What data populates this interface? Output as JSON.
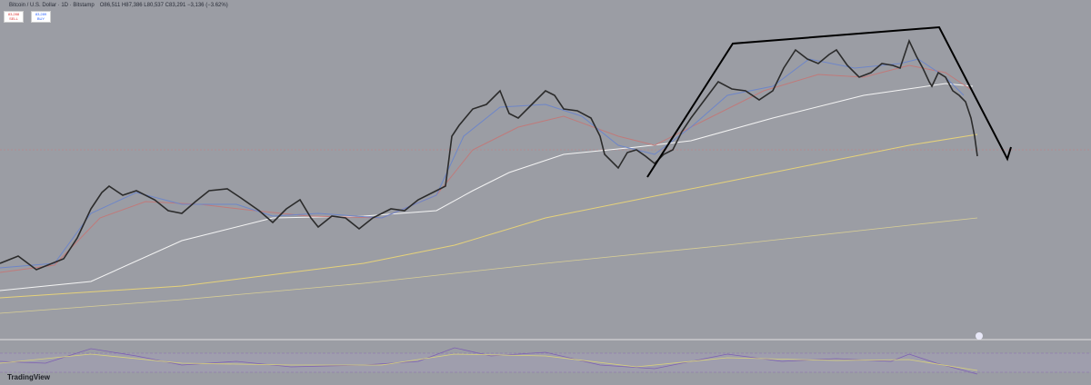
{
  "header": {
    "symbol": "Bitcoin / U.S. Dollar · 1D · Bitstamp",
    "ohlc": "O86,511 H87,386 L80,537 C83,291 −3,136 (−3.62%)"
  },
  "trade": {
    "sell_price": "83,288",
    "sell_label": "SELL",
    "buy_price": "83,289",
    "buy_label": "BUY"
  },
  "footer": {
    "brand": "TradingView"
  }
}
